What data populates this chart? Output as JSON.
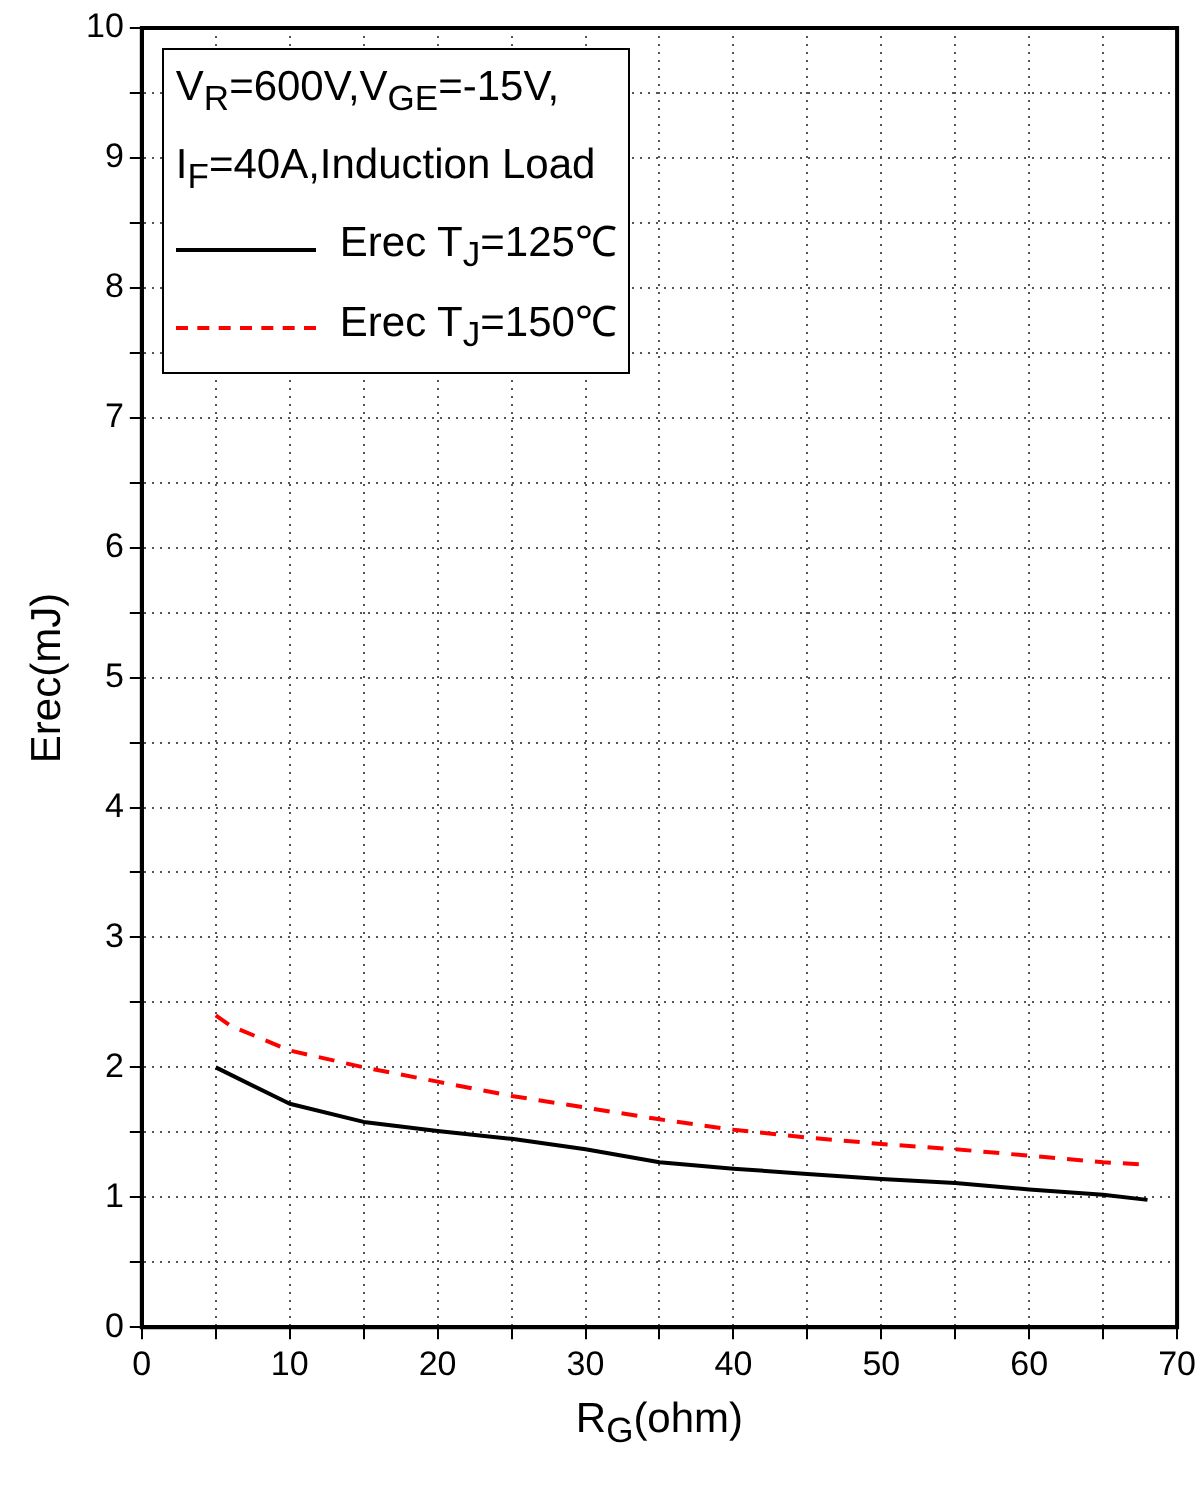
{
  "chart_data": {
    "type": "line",
    "xlabel": "R$_{G}$(ohm)",
    "ylabel": "Erec(mJ)",
    "legend_title": "V$_{R}$=600V,V$_{GE}$=-15V,\nI$_{F}$=40A,Induction Load",
    "xlim": [
      0,
      70
    ],
    "ylim": [
      0,
      10
    ],
    "xticks": [
      0,
      {
        "value": 5,
        "label": null
      },
      10,
      {
        "value": 15,
        "label": null
      },
      20,
      {
        "value": 25,
        "label": null
      },
      30,
      {
        "value": 35,
        "label": null
      },
      40,
      {
        "value": 45,
        "label": null
      },
      50,
      {
        "value": 55,
        "label": null
      },
      60,
      {
        "value": 65,
        "label": null
      },
      70
    ],
    "yticks": [
      0,
      {
        "value": 0.5,
        "label": null
      },
      1,
      {
        "value": 1.5,
        "label": null
      },
      2,
      {
        "value": 2.5,
        "label": null
      },
      3,
      {
        "value": 3.5,
        "label": null
      },
      4,
      {
        "value": 4.5,
        "label": null
      },
      5,
      {
        "value": 5.5,
        "label": null
      },
      6,
      {
        "value": 6.5,
        "label": null
      },
      7,
      {
        "value": 7.5,
        "label": null
      },
      8,
      {
        "value": 8.5,
        "label": null
      },
      9,
      {
        "value": 9.5,
        "label": null
      },
      10
    ],
    "grid": true,
    "legend": "top left",
    "marker": "none",
    "series": [
      {
        "name": "Erec T$_{J}$=125℃",
        "color": "#000000",
        "line_style": "solid",
        "x": [
          5,
          10,
          15,
          20,
          25,
          30,
          35,
          40,
          45,
          50,
          55,
          60,
          65,
          68
        ],
        "values": [
          2.0,
          1.72,
          1.58,
          1.51,
          1.45,
          1.37,
          1.27,
          1.22,
          1.18,
          1.14,
          1.11,
          1.06,
          1.02,
          0.98
        ]
      },
      {
        "name": "Erec T$_{J}$=150℃",
        "color": "#ff0000",
        "line_style": "dashed",
        "x": [
          5,
          6,
          10,
          15,
          20,
          25,
          30,
          35,
          40,
          45,
          50,
          55,
          60,
          65,
          68
        ],
        "values": [
          2.4,
          2.32,
          2.13,
          2.0,
          1.89,
          1.78,
          1.69,
          1.6,
          1.52,
          1.46,
          1.41,
          1.37,
          1.32,
          1.27,
          1.25
        ]
      }
    ]
  }
}
